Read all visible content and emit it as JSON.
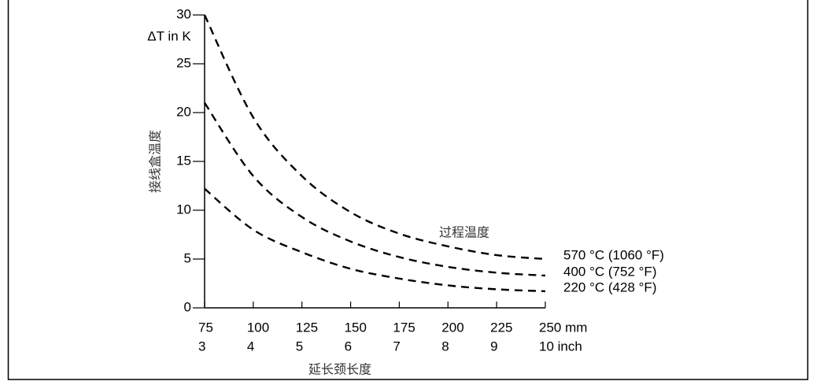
{
  "chart_data": {
    "type": "line",
    "y_label_top": "ΔT in K",
    "y_label": "接线盒温度",
    "x_label": "延长颈长度",
    "annotation": "过程温度",
    "x": [
      75,
      100,
      125,
      150,
      175,
      200,
      225,
      250
    ],
    "xlim": [
      75,
      250
    ],
    "xticks": [
      75,
      100,
      125,
      150,
      175,
      200,
      225,
      {
        "value": 250,
        "label": "250 mm"
      }
    ],
    "x2tick_labels": [
      "3",
      "4",
      "5",
      "6",
      "7",
      "8",
      "9",
      "10 inch"
    ],
    "ylim": [
      0,
      30
    ],
    "yticks": [
      0,
      5,
      10,
      15,
      20,
      25,
      30
    ],
    "series": [
      {
        "name": "570 °C (1060 °F)",
        "color": "#000000",
        "values": [
          30,
          19.5,
          13.5,
          9.8,
          7.6,
          6.3,
          5.4,
          5
        ]
      },
      {
        "name": "400 °C (752 °F)",
        "color": "#000000",
        "values": [
          21,
          13.5,
          9.3,
          6.8,
          5.2,
          4.2,
          3.6,
          3.3
        ]
      },
      {
        "name": "220 °C (428 °F)",
        "color": "#000000",
        "values": [
          12.2,
          8,
          5.7,
          4,
          3,
          2.3,
          1.9,
          1.7
        ]
      }
    ]
  }
}
